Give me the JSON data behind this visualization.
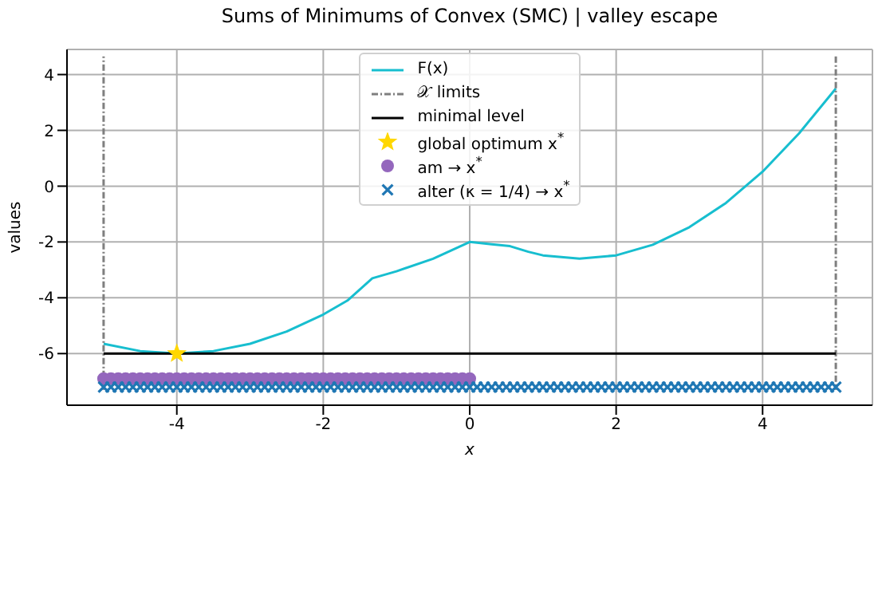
{
  "chart_data": {
    "type": "line",
    "title": "Sums of Minimums of Convex (SMC) | valley escape",
    "xlabel": "x",
    "ylabel": "values",
    "xlim": [
      -5.5,
      5.5
    ],
    "xticks": [
      -4,
      -2,
      0,
      2,
      4
    ],
    "ylim": [
      -7.85,
      4.9
    ],
    "yticks": [
      -6,
      -4,
      -2,
      0,
      2,
      4
    ],
    "grid": true,
    "legend": "top",
    "series": [
      {
        "name": "F(x)",
        "color": "#17becf",
        "marker": "none",
        "line_style": "solid",
        "x": [
          -5,
          -4.5,
          -4,
          -3.5,
          -3,
          -2.5,
          -2,
          -1.67,
          -1.33,
          -1,
          -0.5,
          0,
          0.3,
          0.55,
          0.8,
          1,
          1.5,
          2,
          2.5,
          3,
          3.5,
          4,
          4.5,
          5
        ],
        "values": [
          -5.65,
          -5.91,
          -6.0,
          -5.91,
          -5.65,
          -5.21,
          -4.6,
          -4.1,
          -3.3,
          -3.05,
          -2.6,
          -2.0,
          -2.08,
          -2.15,
          -2.35,
          -2.48,
          -2.6,
          -2.48,
          -2.1,
          -1.47,
          -0.6,
          0.52,
          1.9,
          3.5
        ]
      },
      {
        "name": "𝒳 limits",
        "color": "#7f7f7f",
        "marker": "none",
        "line_style": "dashed",
        "x": [
          -5,
          -5,
          0,
          5,
          5
        ],
        "values": [
          -7.3,
          4.65,
          null,
          4.65,
          -7.3
        ]
      },
      {
        "name": "minimal level",
        "color": "#000000",
        "marker": "none",
        "line_style": "solid",
        "x": [
          -5,
          5
        ],
        "values": [
          -6,
          -6
        ]
      },
      {
        "name": "global optimum x$^{*}$",
        "type": "scatter",
        "color": "#ffd700",
        "marker": "star",
        "x": [
          -4
        ],
        "values": [
          -6
        ]
      },
      {
        "name": "am → x$^{*}$",
        "type": "scatter",
        "color": "#9467bd",
        "marker": "circle",
        "x": [
          -5,
          -4.9,
          -4.8,
          -4.7,
          -4.6,
          -4.5,
          -4.4,
          -4.3,
          -4.2,
          -4.1,
          -4,
          -3.9,
          -3.8,
          -3.7,
          -3.6,
          -3.5,
          -3.4,
          -3.3,
          -3.2,
          -3.1,
          -3,
          -2.9,
          -2.8,
          -2.7,
          -2.6,
          -2.5,
          -2.4,
          -2.3,
          -2.2,
          -2.1,
          -2,
          -1.9,
          -1.8,
          -1.7,
          -1.6,
          -1.5,
          -1.4,
          -1.3,
          -1.2,
          -1.1,
          -1,
          -0.9,
          -0.8,
          -0.7,
          -0.6,
          -0.5,
          -0.4,
          -0.3,
          -0.2,
          -0.1,
          0
        ],
        "values": [
          -6.9,
          -6.9,
          -6.9,
          -6.9,
          -6.9,
          -6.9,
          -6.9,
          -6.9,
          -6.9,
          -6.9,
          -6.9,
          -6.9,
          -6.9,
          -6.9,
          -6.9,
          -6.9,
          -6.9,
          -6.9,
          -6.9,
          -6.9,
          -6.9,
          -6.9,
          -6.9,
          -6.9,
          -6.9,
          -6.9,
          -6.9,
          -6.9,
          -6.9,
          -6.9,
          -6.9,
          -6.9,
          -6.9,
          -6.9,
          -6.9,
          -6.9,
          -6.9,
          -6.9,
          -6.9,
          -6.9,
          -6.9,
          -6.9,
          -6.9,
          -6.9,
          -6.9,
          -6.9,
          -6.9,
          -6.9,
          -6.9,
          -6.9,
          -6.9
        ]
      },
      {
        "name": "alter (κ = 1/4) → x$^{*}$",
        "type": "scatter",
        "color": "#1f77b4",
        "marker": "cross",
        "x": [
          -5,
          -4.9,
          -4.8,
          -4.7,
          -4.6,
          -4.5,
          -4.4,
          -4.3,
          -4.2,
          -4.1,
          -4,
          -3.9,
          -3.8,
          -3.7,
          -3.6,
          -3.5,
          -3.4,
          -3.3,
          -3.2,
          -3.1,
          -3,
          -2.9,
          -2.8,
          -2.7,
          -2.6,
          -2.5,
          -2.4,
          -2.3,
          -2.2,
          -2.1,
          -2,
          -1.9,
          -1.8,
          -1.7,
          -1.6,
          -1.5,
          -1.4,
          -1.3,
          -1.2,
          -1.1,
          -1,
          -0.9,
          -0.8,
          -0.7,
          -0.6,
          -0.5,
          -0.4,
          -0.3,
          -0.2,
          -0.1,
          0,
          0.1,
          0.2,
          0.3,
          0.4,
          0.5,
          0.6,
          0.7,
          0.8,
          0.9,
          1,
          1.1,
          1.2,
          1.3,
          1.4,
          1.5,
          1.6,
          1.7,
          1.8,
          1.9,
          2,
          2.1,
          2.2,
          2.3,
          2.4,
          2.5,
          2.6,
          2.7,
          2.8,
          2.9,
          3,
          3.1,
          3.2,
          3.3,
          3.4,
          3.5,
          3.6,
          3.7,
          3.8,
          3.9,
          4,
          4.1,
          4.2,
          4.3,
          4.4,
          4.5,
          4.6,
          4.7,
          4.8,
          4.9,
          5
        ],
        "values": [
          -7.2,
          -7.2,
          -7.2,
          -7.2,
          -7.2,
          -7.2,
          -7.2,
          -7.2,
          -7.2,
          -7.2,
          -7.2,
          -7.2,
          -7.2,
          -7.2,
          -7.2,
          -7.2,
          -7.2,
          -7.2,
          -7.2,
          -7.2,
          -7.2,
          -7.2,
          -7.2,
          -7.2,
          -7.2,
          -7.2,
          -7.2,
          -7.2,
          -7.2,
          -7.2,
          -7.2,
          -7.2,
          -7.2,
          -7.2,
          -7.2,
          -7.2,
          -7.2,
          -7.2,
          -7.2,
          -7.2,
          -7.2,
          -7.2,
          -7.2,
          -7.2,
          -7.2,
          -7.2,
          -7.2,
          -7.2,
          -7.2,
          -7.2,
          -7.2,
          -7.2,
          -7.2,
          -7.2,
          -7.2,
          -7.2,
          -7.2,
          -7.2,
          -7.2,
          -7.2,
          -7.2,
          -7.2,
          -7.2,
          -7.2,
          -7.2,
          -7.2,
          -7.2,
          -7.2,
          -7.2,
          -7.2,
          -7.2,
          -7.2,
          -7.2,
          -7.2,
          -7.2,
          -7.2,
          -7.2,
          -7.2,
          -7.2,
          -7.2,
          -7.2,
          -7.2,
          -7.2,
          -7.2,
          -7.2,
          -7.2,
          -7.2,
          -7.2,
          -7.2,
          -7.2,
          -7.2,
          -7.2,
          -7.2,
          -7.2,
          -7.2,
          -7.2,
          -7.2,
          -7.2,
          -7.2,
          -7.2,
          -7.2
        ]
      }
    ]
  }
}
